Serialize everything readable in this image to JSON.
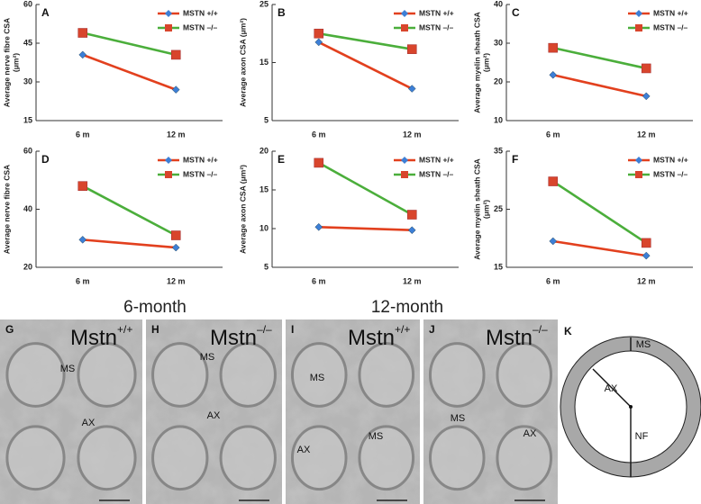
{
  "chart_data": [
    {
      "type": "line",
      "label": "A",
      "ylabel": [
        "Average nerve fibre CSA",
        "(μm²)"
      ],
      "categories": [
        "6 m",
        "12 m"
      ],
      "series": [
        {
          "name": "MSTN +/+",
          "color": "#e2401e",
          "marker_color": "#3d7fd6",
          "marker": "diamond",
          "values": [
            40.5,
            27
          ]
        },
        {
          "name": "MSTN –/–",
          "color": "#4bae3b",
          "marker_color": "#d8452c",
          "marker": "square",
          "values": [
            49,
            40.5
          ]
        }
      ],
      "ylim": [
        15,
        60
      ],
      "yticks": [
        15,
        30,
        45,
        60
      ]
    },
    {
      "type": "line",
      "label": "B",
      "ylabel": [
        "Average axon CSA (μm²)"
      ],
      "categories": [
        "6 m",
        "12 m"
      ],
      "series": [
        {
          "name": "MSTN +/+",
          "color": "#e2401e",
          "marker_color": "#3d7fd6",
          "marker": "diamond",
          "values": [
            18.5,
            10.5
          ]
        },
        {
          "name": "MSTN –/–",
          "color": "#4bae3b",
          "marker_color": "#d8452c",
          "marker": "square",
          "values": [
            20,
            17.3
          ]
        }
      ],
      "ylim": [
        5,
        25
      ],
      "yticks": [
        5,
        15,
        25
      ]
    },
    {
      "type": "line",
      "label": "C",
      "ylabel": [
        "Average myelin sheath CSA",
        "(μm²)"
      ],
      "categories": [
        "6 m",
        "12 m"
      ],
      "series": [
        {
          "name": "MSTN +/+",
          "color": "#e2401e",
          "marker_color": "#3d7fd6",
          "marker": "diamond",
          "values": [
            21.8,
            16.3
          ]
        },
        {
          "name": "MSTN –/–",
          "color": "#4bae3b",
          "marker_color": "#d8452c",
          "marker": "square",
          "values": [
            28.8,
            23.5
          ]
        }
      ],
      "ylim": [
        10,
        40
      ],
      "yticks": [
        10,
        20,
        30,
        40
      ]
    },
    {
      "type": "line",
      "label": "D",
      "ylabel": [
        "Average nerve fibre CSA"
      ],
      "categories": [
        "6 m",
        "12 m"
      ],
      "series": [
        {
          "name": "MSTN +/+",
          "color": "#e2401e",
          "marker_color": "#3d7fd6",
          "marker": "diamond",
          "values": [
            29.5,
            26.8
          ]
        },
        {
          "name": "MSTN –/–",
          "color": "#4bae3b",
          "marker_color": "#d8452c",
          "marker": "square",
          "values": [
            48,
            31
          ]
        }
      ],
      "ylim": [
        20,
        60
      ],
      "yticks": [
        20,
        40,
        60
      ]
    },
    {
      "type": "line",
      "label": "E",
      "ylabel": [
        "Average axon CSA (μm²)"
      ],
      "categories": [
        "6 m",
        "12 m"
      ],
      "series": [
        {
          "name": "MSTN +/+",
          "color": "#e2401e",
          "marker_color": "#3d7fd6",
          "marker": "diamond",
          "values": [
            10.2,
            9.8
          ]
        },
        {
          "name": "MSTN –/–",
          "color": "#4bae3b",
          "marker_color": "#d8452c",
          "marker": "square",
          "values": [
            18.5,
            11.8
          ]
        }
      ],
      "ylim": [
        5,
        20
      ],
      "yticks": [
        5,
        10,
        15,
        20
      ]
    },
    {
      "type": "line",
      "label": "F",
      "ylabel": [
        "Average myelin sheath CSA",
        "(μm²)"
      ],
      "categories": [
        "6 m",
        "12 m"
      ],
      "series": [
        {
          "name": "MSTN +/+",
          "color": "#e2401e",
          "marker_color": "#3d7fd6",
          "marker": "diamond",
          "values": [
            19.5,
            17
          ]
        },
        {
          "name": "MSTN –/–",
          "color": "#4bae3b",
          "marker_color": "#d8452c",
          "marker": "square",
          "values": [
            29.8,
            19.2
          ]
        }
      ],
      "ylim": [
        15,
        35
      ],
      "yticks": [
        15,
        25,
        35
      ]
    }
  ],
  "micrograph_headings": [
    "6-month",
    "12-month"
  ],
  "micrographs": [
    {
      "label": "G",
      "genotype": "Mstn",
      "superscript": "+/+",
      "annotations": [
        "MS",
        "AX"
      ]
    },
    {
      "label": "H",
      "genotype": "Mstn",
      "superscript": "–/–",
      "annotations": [
        "MS",
        "AX"
      ]
    },
    {
      "label": "I",
      "genotype": "Mstn",
      "superscript": "+/+",
      "annotations": [
        "MS",
        "AX",
        "MS"
      ]
    },
    {
      "label": "J",
      "genotype": "Mstn",
      "superscript": "–/–",
      "annotations": [
        "MS",
        "AX"
      ]
    }
  ],
  "diagram": {
    "label": "K",
    "annotations": [
      "MS",
      "AX",
      "NF"
    ]
  }
}
